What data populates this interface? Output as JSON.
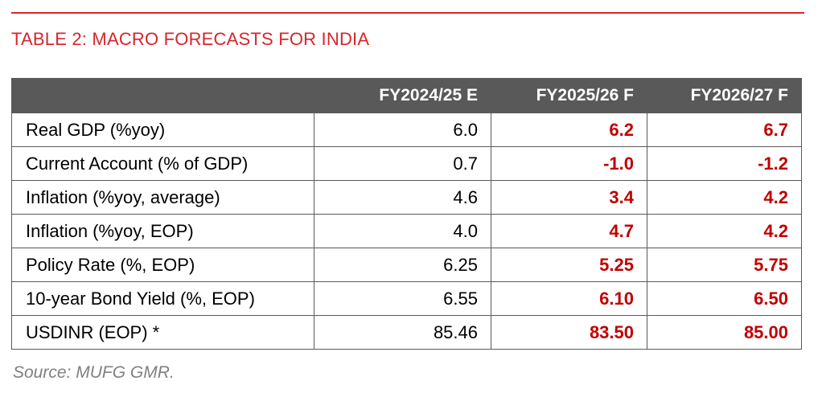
{
  "title": "TABLE 2: MACRO FORECASTS FOR INDIA",
  "columns": [
    "",
    "FY2024/25 E",
    "FY2025/26 F",
    "FY2026/27 F"
  ],
  "rows": [
    {
      "label": "Real GDP (%yoy)",
      "fy2425": "6.0",
      "fy2526": "6.2",
      "fy2627": "6.7"
    },
    {
      "label": "Current Account (% of GDP)",
      "fy2425": "0.7",
      "fy2526": "-1.0",
      "fy2627": "-1.2"
    },
    {
      "label": "Inflation (%yoy, average)",
      "fy2425": "4.6",
      "fy2526": "3.4",
      "fy2627": "4.2"
    },
    {
      "label": "Inflation (%yoy, EOP)",
      "fy2425": "4.0",
      "fy2526": "4.7",
      "fy2627": "4.2"
    },
    {
      "label": "Policy Rate (%, EOP)",
      "fy2425": "6.25",
      "fy2526": "5.25",
      "fy2627": "5.75"
    },
    {
      "label": "10-year Bond Yield (%, EOP)",
      "fy2425": "6.55",
      "fy2526": "6.10",
      "fy2627": "6.50"
    },
    {
      "label": "USDINR (EOP) *",
      "fy2425": "85.46",
      "fy2526": "83.50",
      "fy2627": "85.00"
    }
  ],
  "source": "Source: MUFG GMR.",
  "colors": {
    "accent": "#d7262b",
    "header_bg": "#595959",
    "forecast_text": "#c00000",
    "source_text": "#808080"
  }
}
